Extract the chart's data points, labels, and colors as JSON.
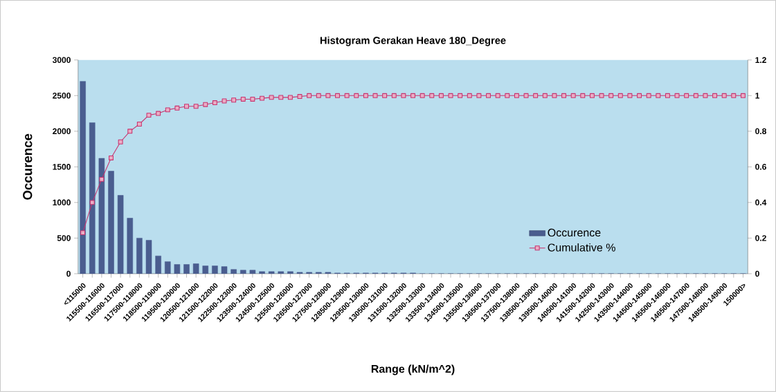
{
  "chart_data": {
    "type": "bar",
    "title": "Histogram Gerakan Heave 180_Degree",
    "xlabel": "Range (kN/m^2)",
    "ylabel": "Occurence",
    "categories": [
      "<115000",
      null,
      "115500-116000",
      null,
      "116500-117000",
      null,
      "117500-118000",
      null,
      "118500-119000",
      null,
      "119500-120000",
      null,
      "120500-121000",
      null,
      "121500-122000",
      null,
      "122500-123000",
      null,
      "123500-124000",
      null,
      "124500-125000",
      null,
      "125500-126000",
      null,
      "126500-127000",
      null,
      "127500-128000",
      null,
      "128500-129000",
      null,
      "129500-130000",
      null,
      "130500-131000",
      null,
      "131500-132000",
      null,
      "132500-133000",
      null,
      "133500-134000",
      null,
      "134500-135000",
      null,
      "135500-136000",
      null,
      "136500-137000",
      null,
      "137500-138000",
      null,
      "138500-139000",
      null,
      "139500-140000",
      null,
      "140500-141000",
      null,
      "141500-142000",
      null,
      "142500-143000",
      null,
      "143500-144000",
      null,
      "144500-145000",
      null,
      "145500-146000",
      null,
      "146500-147000",
      null,
      "147500-148000",
      null,
      "148500-149000",
      null,
      "150000>"
    ],
    "series": [
      {
        "name": "Occurence",
        "color": "#4a5d8f",
        "values": [
          2700,
          2120,
          1620,
          1440,
          1100,
          780,
          500,
          470,
          250,
          170,
          130,
          130,
          140,
          110,
          110,
          100,
          60,
          50,
          50,
          30,
          30,
          30,
          30,
          20,
          20,
          20,
          20,
          10,
          10,
          10,
          10,
          10,
          10,
          10,
          10,
          10,
          0,
          0,
          0,
          0,
          0,
          0,
          0,
          0,
          0,
          0,
          0,
          0,
          0,
          0,
          0,
          0,
          0,
          0,
          0,
          0,
          0,
          0,
          0,
          0,
          0,
          0,
          0,
          0,
          0,
          0,
          0,
          0,
          0,
          0,
          0
        ]
      },
      {
        "name": "Cumulative %",
        "type": "line",
        "axis": "y2",
        "marker": "square",
        "color": "#c8336e",
        "values": [
          0.23,
          0.4,
          0.53,
          0.65,
          0.74,
          0.8,
          0.84,
          0.89,
          0.9,
          0.92,
          0.93,
          0.94,
          0.94,
          0.95,
          0.96,
          0.97,
          0.975,
          0.98,
          0.98,
          0.985,
          0.99,
          0.99,
          0.99,
          0.995,
          1,
          1,
          1,
          1,
          1,
          1,
          1,
          1,
          1,
          1,
          1,
          1,
          1,
          1,
          1,
          1,
          1,
          1,
          1,
          1,
          1,
          1,
          1,
          1,
          1,
          1,
          1,
          1,
          1,
          1,
          1,
          1,
          1,
          1,
          1,
          1,
          1,
          1,
          1,
          1,
          1,
          1,
          1,
          1,
          1,
          1,
          1
        ]
      }
    ],
    "ylim": [
      0,
      3000
    ],
    "yticks": [
      0,
      500,
      1000,
      1500,
      2000,
      2500,
      3000
    ],
    "y2lim": [
      0,
      1.2
    ],
    "y2ticks": [
      0,
      0.2,
      0.4,
      0.6,
      0.8,
      1,
      1.2
    ],
    "legend": "bottom right",
    "grid": false
  }
}
